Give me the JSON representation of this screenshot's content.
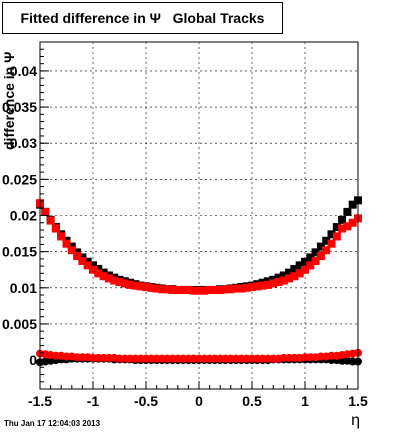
{
  "title": "Fitted difference in Ψ   Global Tracks",
  "footer": "Thu Jan 17 12:04:03 2013",
  "chart_data": {
    "type": "scatter",
    "title": "Fitted difference in Ψ   Global Tracks",
    "xlabel": "η",
    "ylabel": "difference in Ψ",
    "xlim": [
      -1.5,
      1.5
    ],
    "ylim": [
      -0.004,
      0.044
    ],
    "xticks": [
      -1.5,
      -1,
      -0.5,
      0,
      0.5,
      1,
      1.5
    ],
    "yticks": [
      0,
      0.005,
      0.01,
      0.015,
      0.02,
      0.025,
      0.03,
      0.035,
      0.04
    ],
    "ytick_labels": [
      "0",
      "0.005",
      "0.01",
      "0.015",
      "0.02",
      "0.025",
      "0.03",
      "0.035",
      "0.04"
    ],
    "grid": true,
    "series": [
      {
        "color": "#000000",
        "marker": "square",
        "x": [
          -1.5,
          -1.45,
          -1.4,
          -1.35,
          -1.3,
          -1.25,
          -1.2,
          -1.15,
          -1.1,
          -1.05,
          -1.0,
          -0.95,
          -0.9,
          -0.85,
          -0.8,
          -0.75,
          -0.7,
          -0.65,
          -0.6,
          -0.55,
          -0.5,
          -0.45,
          -0.4,
          -0.35,
          -0.3,
          -0.25,
          -0.2,
          -0.15,
          -0.1,
          -0.05,
          0.0,
          0.05,
          0.1,
          0.15,
          0.2,
          0.25,
          0.3,
          0.35,
          0.4,
          0.45,
          0.5,
          0.55,
          0.6,
          0.65,
          0.7,
          0.75,
          0.8,
          0.85,
          0.9,
          0.95,
          1.0,
          1.05,
          1.1,
          1.15,
          1.2,
          1.25,
          1.3,
          1.35,
          1.4,
          1.45,
          1.5
        ],
        "y": [
          0.0215,
          0.0205,
          0.0194,
          0.0184,
          0.0174,
          0.0165,
          0.0157,
          0.0149,
          0.0142,
          0.0136,
          0.0131,
          0.0126,
          0.0121,
          0.0117,
          0.0114,
          0.0111,
          0.0109,
          0.0107,
          0.0105,
          0.0103,
          0.0102,
          0.0101,
          0.01,
          0.0099,
          0.0098,
          0.0098,
          0.0097,
          0.0097,
          0.0097,
          0.0097,
          0.0097,
          0.0097,
          0.0097,
          0.0097,
          0.0098,
          0.0098,
          0.0099,
          0.01,
          0.0101,
          0.0102,
          0.0103,
          0.0105,
          0.0107,
          0.0109,
          0.0111,
          0.0114,
          0.0117,
          0.0121,
          0.0126,
          0.0131,
          0.0136,
          0.0142,
          0.0149,
          0.0157,
          0.0165,
          0.0174,
          0.0184,
          0.0194,
          0.0205,
          0.0215,
          0.0221
        ]
      },
      {
        "color": "#ff0000",
        "marker": "square",
        "x": [
          -1.5,
          -1.45,
          -1.4,
          -1.35,
          -1.3,
          -1.25,
          -1.2,
          -1.15,
          -1.1,
          -1.05,
          -1.0,
          -0.95,
          -0.9,
          -0.85,
          -0.8,
          -0.75,
          -0.7,
          -0.65,
          -0.6,
          -0.55,
          -0.5,
          -0.45,
          -0.4,
          -0.35,
          -0.3,
          -0.25,
          -0.2,
          -0.15,
          -0.1,
          -0.05,
          0.0,
          0.05,
          0.1,
          0.15,
          0.2,
          0.25,
          0.3,
          0.35,
          0.4,
          0.45,
          0.5,
          0.55,
          0.6,
          0.65,
          0.7,
          0.75,
          0.8,
          0.85,
          0.9,
          0.95,
          1.0,
          1.05,
          1.1,
          1.15,
          1.2,
          1.25,
          1.3,
          1.35,
          1.4,
          1.45,
          1.5
        ],
        "y": [
          0.0217,
          0.0205,
          0.0193,
          0.0182,
          0.0171,
          0.0161,
          0.0152,
          0.0144,
          0.0137,
          0.0131,
          0.0125,
          0.012,
          0.0116,
          0.0113,
          0.011,
          0.0108,
          0.0106,
          0.0104,
          0.0103,
          0.0102,
          0.0101,
          0.01,
          0.0099,
          0.0098,
          0.0098,
          0.0097,
          0.0097,
          0.0097,
          0.0097,
          0.0096,
          0.0096,
          0.0096,
          0.0097,
          0.0097,
          0.0097,
          0.0098,
          0.0098,
          0.0099,
          0.0099,
          0.01,
          0.0101,
          0.0102,
          0.0103,
          0.0104,
          0.0106,
          0.0108,
          0.011,
          0.0113,
          0.0116,
          0.012,
          0.0125,
          0.0131,
          0.0137,
          0.0144,
          0.0152,
          0.0161,
          0.0171,
          0.0182,
          0.0185,
          0.019,
          0.0196
        ]
      },
      {
        "color": "#000000",
        "marker": "circle",
        "x": [
          -1.5,
          -1.45,
          -1.4,
          -1.35,
          -1.3,
          -1.25,
          -1.2,
          -1.15,
          -1.1,
          -1.05,
          -1.0,
          -0.95,
          -0.9,
          -0.85,
          -0.8,
          -0.75,
          -0.7,
          -0.65,
          -0.6,
          -0.55,
          -0.5,
          -0.45,
          -0.4,
          -0.35,
          -0.3,
          -0.25,
          -0.2,
          -0.15,
          -0.1,
          -0.05,
          0.0,
          0.05,
          0.1,
          0.15,
          0.2,
          0.25,
          0.3,
          0.35,
          0.4,
          0.45,
          0.5,
          0.55,
          0.6,
          0.65,
          0.7,
          0.75,
          0.8,
          0.85,
          0.9,
          0.95,
          1.0,
          1.05,
          1.1,
          1.15,
          1.2,
          1.25,
          1.3,
          1.35,
          1.4,
          1.45,
          1.5
        ],
        "y": [
          -0.0003,
          -0.0002,
          -0.0001,
          0.0,
          0.0001,
          0.0001,
          0.0002,
          0.0002,
          0.0002,
          0.0002,
          0.0002,
          0.0002,
          0.0002,
          0.0002,
          0.0001,
          0.0001,
          0.0001,
          0.0001,
          0.0,
          0.0,
          0.0,
          0.0,
          0.0,
          0.0,
          0.0,
          0.0,
          0.0,
          0.0,
          0.0,
          0.0,
          0.0,
          0.0,
          0.0,
          0.0,
          0.0,
          0.0,
          0.0,
          0.0,
          0.0,
          0.0,
          0.0,
          0.0,
          0.0,
          0.0,
          0.0001,
          0.0001,
          0.0001,
          0.0001,
          0.0001,
          0.0001,
          0.0001,
          0.0001,
          0.0001,
          0.0001,
          0.0001,
          0.0,
          0.0,
          -0.0001,
          -0.0001,
          -0.0002,
          -0.0002
        ]
      },
      {
        "color": "#ff0000",
        "marker": "circle",
        "x": [
          -1.5,
          -1.45,
          -1.4,
          -1.35,
          -1.3,
          -1.25,
          -1.2,
          -1.15,
          -1.1,
          -1.05,
          -1.0,
          -0.95,
          -0.9,
          -0.85,
          -0.8,
          -0.75,
          -0.7,
          -0.65,
          -0.6,
          -0.55,
          -0.5,
          -0.45,
          -0.4,
          -0.35,
          -0.3,
          -0.25,
          -0.2,
          -0.15,
          -0.1,
          -0.05,
          0.0,
          0.05,
          0.1,
          0.15,
          0.2,
          0.25,
          0.3,
          0.35,
          0.4,
          0.45,
          0.5,
          0.55,
          0.6,
          0.65,
          0.7,
          0.75,
          0.8,
          0.85,
          0.9,
          0.95,
          1.0,
          1.05,
          1.1,
          1.15,
          1.2,
          1.25,
          1.3,
          1.35,
          1.4,
          1.45,
          1.5
        ],
        "y": [
          0.0009,
          0.0008,
          0.0007,
          0.0006,
          0.0006,
          0.0005,
          0.0005,
          0.0004,
          0.0004,
          0.0004,
          0.0003,
          0.0003,
          0.0003,
          0.0003,
          0.0003,
          0.0002,
          0.0002,
          0.0002,
          0.0002,
          0.0002,
          0.0002,
          0.0002,
          0.0002,
          0.0002,
          0.0002,
          0.0002,
          0.0002,
          0.0002,
          0.0002,
          0.0002,
          0.0002,
          0.0002,
          0.0002,
          0.0002,
          0.0002,
          0.0002,
          0.0002,
          0.0002,
          0.0002,
          0.0002,
          0.0002,
          0.0002,
          0.0002,
          0.0002,
          0.0002,
          0.0002,
          0.0003,
          0.0003,
          0.0003,
          0.0003,
          0.0004,
          0.0004,
          0.0004,
          0.0005,
          0.0005,
          0.0006,
          0.0006,
          0.0007,
          0.0008,
          0.0009,
          0.001
        ]
      }
    ]
  }
}
